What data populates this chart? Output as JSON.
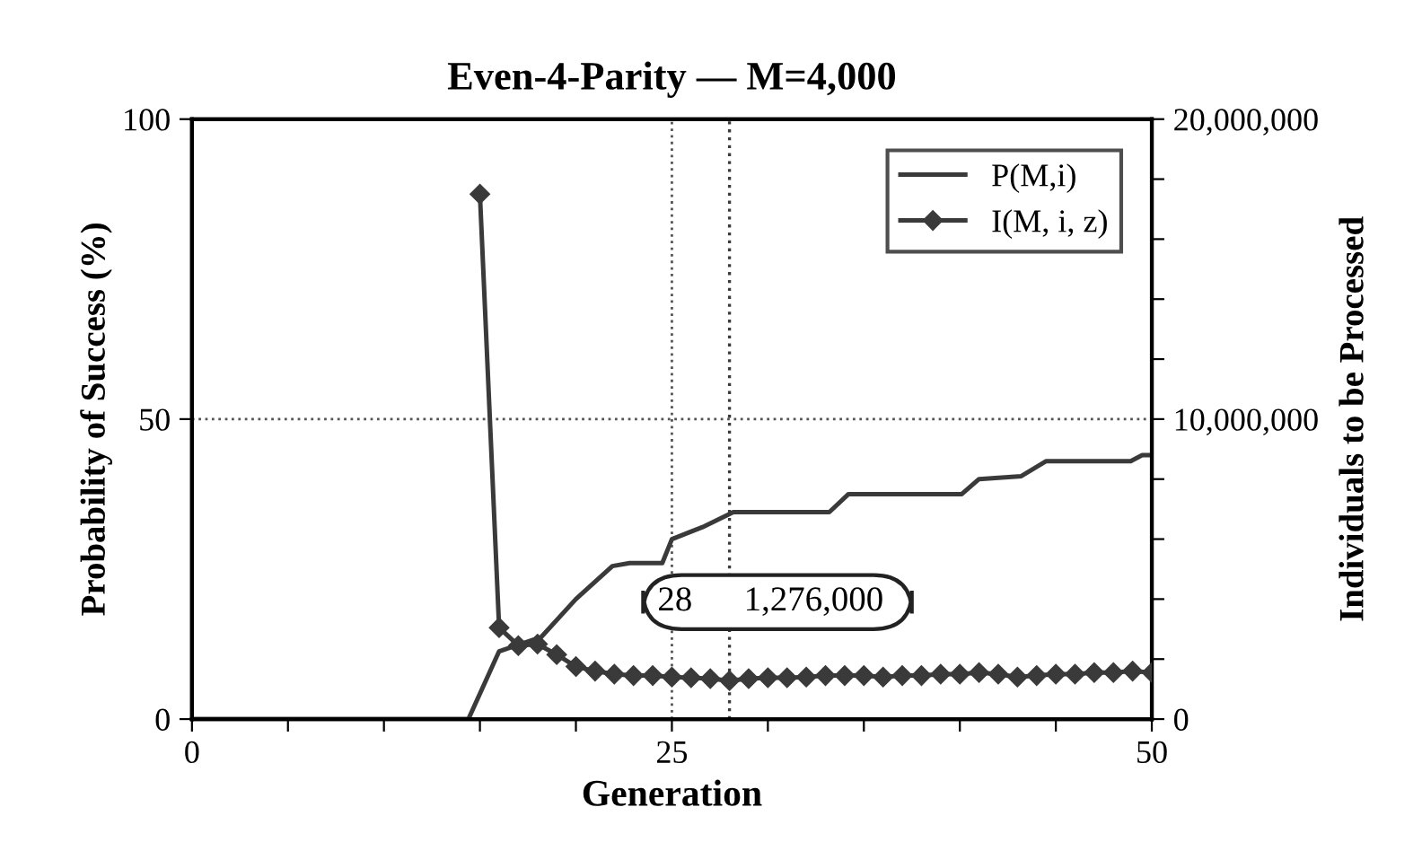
{
  "chart_data": {
    "type": "line",
    "title": "Even-4-Parity — M=4,000",
    "xlabel": "Generation",
    "ylabel": "Probability of Success (%)",
    "y2label": "Individuals to be Processed",
    "xlim": [
      0,
      50
    ],
    "xticks": [
      0,
      {
        "value": 5,
        "label": null
      },
      {
        "value": 10,
        "label": null
      },
      {
        "value": 15,
        "label": null
      },
      {
        "value": 20,
        "label": null
      },
      25,
      {
        "value": 30,
        "label": null
      },
      {
        "value": 35,
        "label": null
      },
      {
        "value": 40,
        "label": null
      },
      {
        "value": 45,
        "label": null
      },
      50
    ],
    "ylim": [
      0,
      100
    ],
    "yticks": [
      0,
      50,
      100
    ],
    "y2lim": [
      0,
      20000000
    ],
    "y2ticks": [
      {
        "value": 0,
        "label": "0"
      },
      {
        "value": 2000000,
        "label": null
      },
      {
        "value": 4000000,
        "label": null
      },
      {
        "value": 6000000,
        "label": null
      },
      {
        "value": 8000000,
        "label": null
      },
      {
        "value": 10000000,
        "label": "10,000,000"
      },
      {
        "value": 12000000,
        "label": null
      },
      {
        "value": 14000000,
        "label": null
      },
      {
        "value": 16000000,
        "label": null
      },
      {
        "value": 18000000,
        "label": null
      },
      {
        "value": 20000000,
        "label": "20,000,000"
      }
    ],
    "grid": true,
    "legend": "top right",
    "series": [
      {
        "name": "P(M,i)",
        "color": "#3a3a3a",
        "marker": "none",
        "x": [
          0,
          14.4,
          16,
          18.2,
          20,
          21.9,
          22.8,
          24.5,
          25,
          26.6,
          28.2,
          33.2,
          34.2,
          40.1,
          41,
          43.2,
          44.5,
          48.9,
          49.5,
          50
        ],
        "values": [
          0,
          0,
          11.3,
          13.7,
          20,
          25.5,
          26,
          26,
          30,
          32,
          34.5,
          34.5,
          37.5,
          37.5,
          40,
          40.5,
          43,
          43,
          44,
          44
        ]
      },
      {
        "name": "I(M, i, z)",
        "color": "#3a3a3a",
        "marker": "diamond",
        "axis": "y2",
        "x": [
          15,
          16,
          17,
          18,
          19,
          20,
          21,
          22,
          23,
          24,
          25,
          26,
          27,
          28,
          29,
          30,
          31,
          32,
          33,
          34,
          35,
          36,
          37,
          38,
          39,
          40,
          41,
          42,
          43,
          44,
          45,
          46,
          47,
          48,
          49,
          50
        ],
        "values": [
          17500000,
          3050000,
          2450000,
          2500000,
          2150000,
          1750000,
          1600000,
          1500000,
          1450000,
          1450000,
          1400000,
          1380000,
          1350000,
          1280000,
          1350000,
          1380000,
          1380000,
          1400000,
          1450000,
          1450000,
          1450000,
          1400000,
          1450000,
          1450000,
          1500000,
          1500000,
          1550000,
          1500000,
          1400000,
          1450000,
          1500000,
          1500000,
          1550000,
          1550000,
          1600000,
          1550000
        ]
      }
    ],
    "ref_lines": [
      {
        "axis": "x",
        "value": 28,
        "line_style": "dotted",
        "color": "#3a3a3a"
      }
    ],
    "annotations": [
      "28",
      "1,276,000"
    ]
  }
}
